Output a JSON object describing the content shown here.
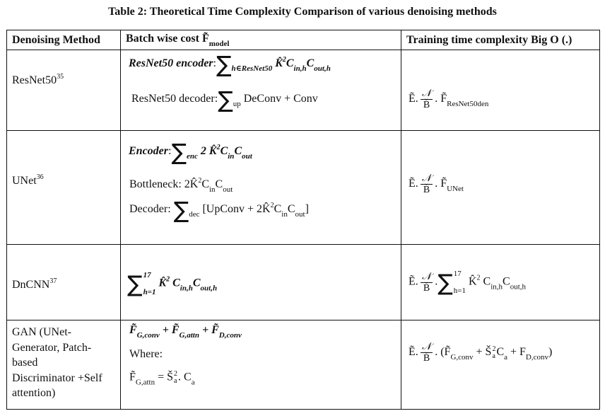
{
  "title": "Table 2: Theoretical Time Complexity Comparison of various denoising methods",
  "headers": {
    "method": "Denoising Method",
    "cost": "Batch wise cost F̃",
    "cost_sub": "model",
    "complexity": "Training time complexity Big O (.)"
  },
  "rows": [
    {
      "method": "ResNet50",
      "ref": "35",
      "cost": {
        "l1_label": "ResNet50 encoder",
        ":": ":",
        "l1_sum": "∑",
        "l1_sub": "h∈ResNet50",
        "l1_term": "K̂",
        "l1_sup": "2",
        "l1_c1": "C",
        "l1_c1s": "in,h",
        "l1_c2": "C",
        "l1_c2s": "out,h",
        "l2_label": "ResNet50 decoder:",
        "l2_sum": "∑",
        "l2_sub": "up",
        "l2_term": "DeConv + Conv"
      },
      "complexity": {
        "e": "Ẽ.",
        "num": "𝒩",
        "den": "B̆",
        "rest": ". F̃",
        "rest_sub": "ResNet50den"
      }
    },
    {
      "method": "UNet",
      "ref": "36",
      "cost": {
        "l1_label": "Encoder",
        "l1_colon": ":",
        "l1_sum": "∑",
        "l1_sub": "enc",
        "l1_term": "2 K̂",
        "l1_sup": "2",
        "l1_c": "C",
        "l1_cs": "in",
        "l1_c2": "C",
        "l1_c2s": "out",
        "l2": "Bottleneck: 2K̂",
        "l2_sup": "2",
        "l2_c": "C",
        "l2_cs": "in",
        "l2_c2": "C",
        "l2_c2s": "out",
        "l3_label": "Decoder:",
        "l3_sum": "∑",
        "l3_sub": "dec",
        "l3_a": "[UpConv + 2K̂",
        "l3_sup": "2",
        "l3_c": "C",
        "l3_cs": "in",
        "l3_c2": "C",
        "l3_c2s": "out",
        "l3_end": "]"
      },
      "complexity": {
        "e": "Ẽ.",
        "num": "𝒩",
        "den": "B̆",
        "rest": ". F̃",
        "rest_sub": "UNet"
      }
    },
    {
      "method": "DnCNN",
      "ref": "37",
      "cost": {
        "sum": "∑",
        "sup_top": "17",
        "sub": "h=1",
        "term": "K̂",
        "sup": "2",
        "c1": "C",
        "c1s": "in,h",
        "c2": "C",
        "c2s": "out,h"
      },
      "complexity": {
        "e": "Ẽ.",
        "num": "𝒩",
        "den": "B̆",
        "dot": ".",
        "sum": "∑",
        "sup_top": "17",
        "sub": "h=1",
        "term": "K̂",
        "sup": "2",
        "c1": " C",
        "c1s": "in,h",
        "c2": "C",
        "c2s": "out,h"
      }
    },
    {
      "method": "GAN (UNet-Generator, Patch-based Discriminator +Self attention)",
      "method_lines": [
        "GAN (UNet-",
        "Generator, Patch-",
        "based",
        "Discriminator +Self",
        "attention)"
      ],
      "cost": {
        "l1_a": "F̃",
        "l1_as": "G,conv",
        "l1_b": " + F̃",
        "l1_bs": "G,attn",
        "l1_c": " + F̃",
        "l1_cs": "D,conv",
        "l2": "Where:",
        "l3_a": "F̃",
        "l3_as": "G,attn",
        "l3_eq": " =  Š",
        "l3_sup": "2",
        "l3_sub": "a",
        "l3_rest": ". C",
        "l3_rs": "a"
      },
      "complexity": {
        "e": "Ẽ.",
        "num": "𝒩",
        "den": "B̆",
        "a": ". (F̃",
        "as": "G,conv",
        "b": " + Š",
        "bsup": "2",
        "bsub": "a",
        "c": "C",
        "cs": "a",
        "d": " + F",
        "ds": "D,conv",
        "end": ")"
      }
    }
  ]
}
